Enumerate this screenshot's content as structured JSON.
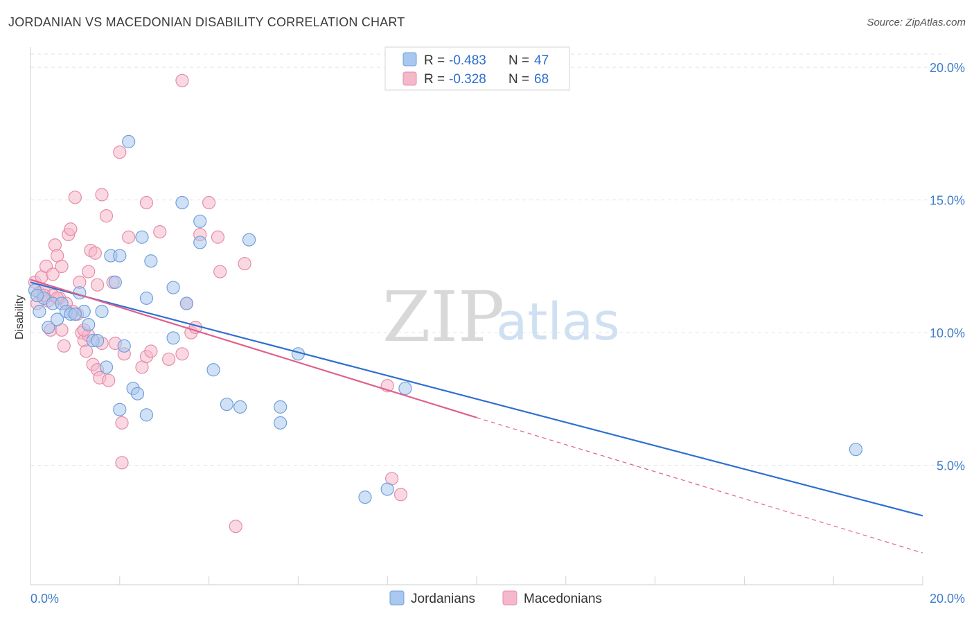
{
  "title": "JORDANIAN VS MACEDONIAN DISABILITY CORRELATION CHART",
  "source": "Source: ZipAtlas.com",
  "watermark": {
    "zip": "ZIP",
    "atlas": "atlas"
  },
  "colors": {
    "blue_fill": "#a9c8ef",
    "blue_stroke": "#6f9fdc",
    "blue_line": "#2f6fd0",
    "pink_fill": "#f5b8cb",
    "pink_stroke": "#e58ca8",
    "pink_line": "#e0608c",
    "grid": "#e2e2e2",
    "tick_text": "#3d7cc9"
  },
  "legend": {
    "r_label": "R =",
    "n_label": "N =",
    "rows": [
      {
        "r": "-0.483",
        "n": "47"
      },
      {
        "r": "-0.328",
        "n": "68"
      }
    ]
  },
  "chart_data": {
    "type": "scatter",
    "title": "JORDANIAN VS MACEDONIAN DISABILITY CORRELATION CHART",
    "xlabel": "",
    "ylabel": "Disability",
    "xlim": [
      0,
      20
    ],
    "ylim": [
      0.5,
      20.5
    ],
    "x_tick_labels": [
      "0.0%",
      "20.0%"
    ],
    "y_ticks": [
      5,
      10,
      15,
      20
    ],
    "y_tick_labels": [
      "5.0%",
      "10.0%",
      "15.0%",
      "20.0%"
    ],
    "grid": true,
    "legend_position": "top-center",
    "series": [
      {
        "name": "Jordanians",
        "trend": {
          "x0": 0,
          "y0": 11.9,
          "x1": 20,
          "y1": 3.1
        },
        "points": [
          [
            0.1,
            11.6
          ],
          [
            0.2,
            10.8
          ],
          [
            0.3,
            11.3
          ],
          [
            0.4,
            10.2
          ],
          [
            0.5,
            11.1
          ],
          [
            0.6,
            10.5
          ],
          [
            0.7,
            11.1
          ],
          [
            0.8,
            10.8
          ],
          [
            0.9,
            10.7
          ],
          [
            1.1,
            11.5
          ],
          [
            1.2,
            10.8
          ],
          [
            1.3,
            10.3
          ],
          [
            1.4,
            9.7
          ],
          [
            1.5,
            9.7
          ],
          [
            1.6,
            10.8
          ],
          [
            1.7,
            8.7
          ],
          [
            1.8,
            12.9
          ],
          [
            1.9,
            11.9
          ],
          [
            2.0,
            12.9
          ],
          [
            2.0,
            7.1
          ],
          [
            2.1,
            9.5
          ],
          [
            2.2,
            17.2
          ],
          [
            2.3,
            7.9
          ],
          [
            2.4,
            7.7
          ],
          [
            2.5,
            13.6
          ],
          [
            2.6,
            6.9
          ],
          [
            2.6,
            11.3
          ],
          [
            2.7,
            12.7
          ],
          [
            3.2,
            11.7
          ],
          [
            3.2,
            9.8
          ],
          [
            3.4,
            14.9
          ],
          [
            3.5,
            11.1
          ],
          [
            3.8,
            14.2
          ],
          [
            3.8,
            13.4
          ],
          [
            4.1,
            8.6
          ],
          [
            4.4,
            7.3
          ],
          [
            4.7,
            7.2
          ],
          [
            4.9,
            13.5
          ],
          [
            5.6,
            7.2
          ],
          [
            5.6,
            6.6
          ],
          [
            6.0,
            9.2
          ],
          [
            7.5,
            3.8
          ],
          [
            8.0,
            4.1
          ],
          [
            8.4,
            7.9
          ],
          [
            18.5,
            5.6
          ],
          [
            0.15,
            11.4
          ],
          [
            1.0,
            10.7
          ]
        ]
      },
      {
        "name": "Macedonians",
        "trend": {
          "x0": 0,
          "y0": 12.0,
          "x1": 10,
          "y1": 6.8,
          "dash_x1": 20,
          "dash_y1": 1.7
        },
        "points": [
          [
            0.1,
            11.9
          ],
          [
            0.2,
            11.5
          ],
          [
            0.25,
            12.1
          ],
          [
            0.3,
            11.6
          ],
          [
            0.35,
            12.5
          ],
          [
            0.4,
            11.2
          ],
          [
            0.45,
            10.1
          ],
          [
            0.5,
            12.2
          ],
          [
            0.5,
            11.4
          ],
          [
            0.55,
            13.3
          ],
          [
            0.6,
            12.9
          ],
          [
            0.65,
            11.3
          ],
          [
            0.7,
            12.5
          ],
          [
            0.7,
            10.1
          ],
          [
            0.75,
            9.5
          ],
          [
            0.8,
            11.1
          ],
          [
            0.85,
            13.7
          ],
          [
            0.9,
            13.9
          ],
          [
            0.95,
            10.8
          ],
          [
            1.0,
            15.1
          ],
          [
            1.05,
            10.7
          ],
          [
            1.1,
            11.9
          ],
          [
            1.15,
            10.0
          ],
          [
            1.2,
            9.7
          ],
          [
            1.25,
            9.3
          ],
          [
            1.3,
            9.9
          ],
          [
            1.3,
            12.3
          ],
          [
            1.35,
            13.1
          ],
          [
            1.4,
            8.8
          ],
          [
            1.45,
            13.0
          ],
          [
            1.5,
            8.6
          ],
          [
            1.5,
            11.8
          ],
          [
            1.55,
            8.3
          ],
          [
            1.6,
            15.2
          ],
          [
            1.6,
            9.6
          ],
          [
            1.7,
            14.4
          ],
          [
            1.75,
            8.2
          ],
          [
            1.85,
            11.9
          ],
          [
            1.9,
            9.6
          ],
          [
            2.0,
            16.8
          ],
          [
            2.05,
            6.6
          ],
          [
            2.05,
            5.1
          ],
          [
            2.1,
            9.2
          ],
          [
            2.2,
            13.6
          ],
          [
            2.5,
            8.7
          ],
          [
            2.6,
            9.1
          ],
          [
            2.6,
            14.9
          ],
          [
            2.7,
            9.3
          ],
          [
            2.9,
            13.8
          ],
          [
            3.1,
            9.0
          ],
          [
            3.4,
            9.2
          ],
          [
            3.4,
            19.5
          ],
          [
            3.5,
            11.1
          ],
          [
            3.6,
            10.0
          ],
          [
            3.7,
            10.2
          ],
          [
            3.8,
            13.7
          ],
          [
            4.0,
            14.9
          ],
          [
            4.2,
            13.6
          ],
          [
            4.25,
            12.3
          ],
          [
            4.6,
            2.7
          ],
          [
            4.8,
            12.6
          ],
          [
            8.0,
            8.0
          ],
          [
            8.1,
            4.5
          ],
          [
            8.3,
            3.9
          ],
          [
            0.15,
            11.1
          ],
          [
            0.3,
            11.4
          ],
          [
            1.2,
            10.1
          ],
          [
            0.6,
            11.3
          ]
        ]
      }
    ]
  }
}
